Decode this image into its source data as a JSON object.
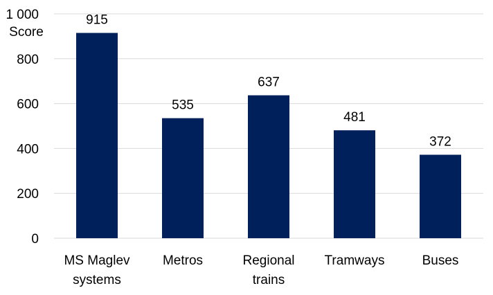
{
  "chart_data": {
    "type": "bar",
    "title": "",
    "xlabel": "",
    "ylabel": "Score",
    "ylim": [
      0,
      1000
    ],
    "yticks": [
      0,
      200,
      400,
      600,
      800,
      1000
    ],
    "ytick_labels": [
      "0",
      "200",
      "400",
      "600",
      "800",
      "1 000"
    ],
    "grid": true,
    "categories": [
      [
        "MS Maglev",
        "systems"
      ],
      [
        "Metros"
      ],
      [
        "Regional",
        "trains"
      ],
      [
        "Tramways"
      ],
      [
        "Buses"
      ]
    ],
    "values": [
      915,
      535,
      637,
      481,
      372
    ],
    "data_labels": [
      "915",
      "535",
      "637",
      "481",
      "372"
    ],
    "bar_color": "#00205b",
    "grid_color": "#d9d9d9"
  }
}
